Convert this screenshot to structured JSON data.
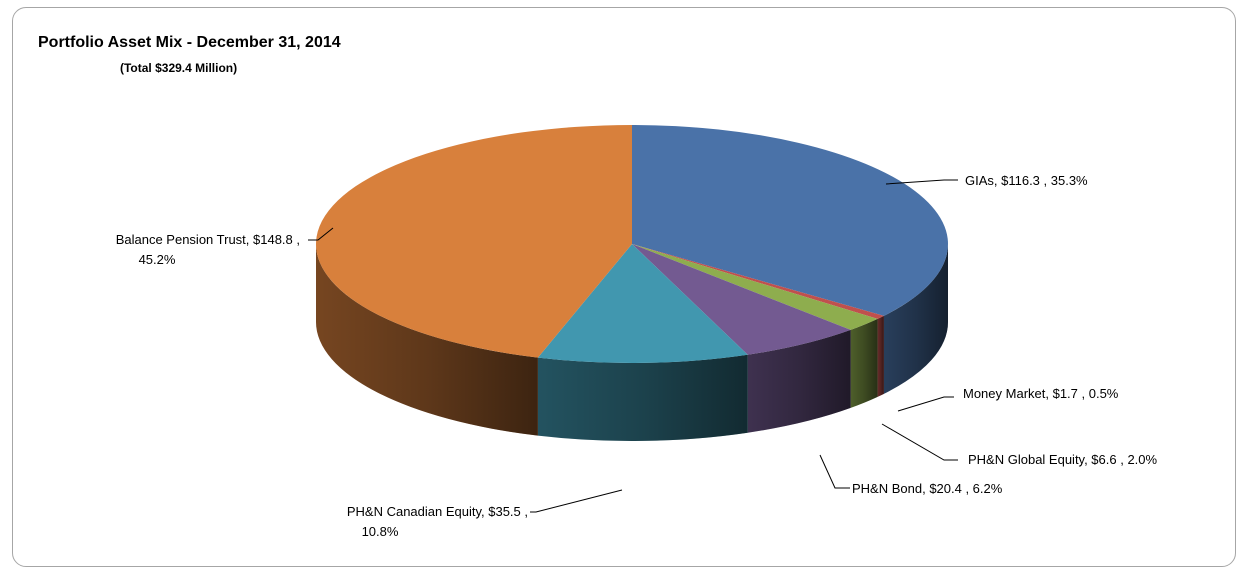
{
  "chart_data": {
    "type": "pie",
    "style": "3d-pie",
    "title": "Portfolio Asset Mix - December 31, 2014",
    "subtitle": "(Total $329.4 Million)",
    "start_angle_deg": 90,
    "direction": "clockwise",
    "series": [
      {
        "name": "",
        "slices": [
          {
            "label": "GIAs",
            "value": 116.3,
            "percent": 35.3,
            "color": "#4A72A8",
            "text": [
              "GIAs,  $116.3 , 35.3%"
            ]
          },
          {
            "label": "Money Market",
            "value": 1.7,
            "percent": 0.5,
            "color": "#C0504D",
            "text": [
              "Money Market,  $1.7 , 0.5%"
            ]
          },
          {
            "label": "PH&N Global Equity",
            "value": 6.6,
            "percent": 2.0,
            "color": "#8EAD4E",
            "text": [
              "PH&N Global Equity,  $6.6 , 2.0%"
            ]
          },
          {
            "label": "PH&N Bond",
            "value": 20.4,
            "percent": 6.2,
            "color": "#735A91",
            "text": [
              "PH&N Bond,  $20.4 , 6.2%"
            ]
          },
          {
            "label": "PH&N Canadian Equity",
            "value": 35.5,
            "percent": 10.8,
            "color": "#4197AF",
            "text": [
              "PH&N Canadian Equity,  $35.5 ,",
              "10.8%"
            ]
          },
          {
            "label": "Balance Pension Trust",
            "value": 148.8,
            "percent": 45.2,
            "color": "#D8803C",
            "text": [
              "Balance Pension Trust,  $148.8 ,",
              "45.2%"
            ]
          }
        ]
      }
    ]
  }
}
